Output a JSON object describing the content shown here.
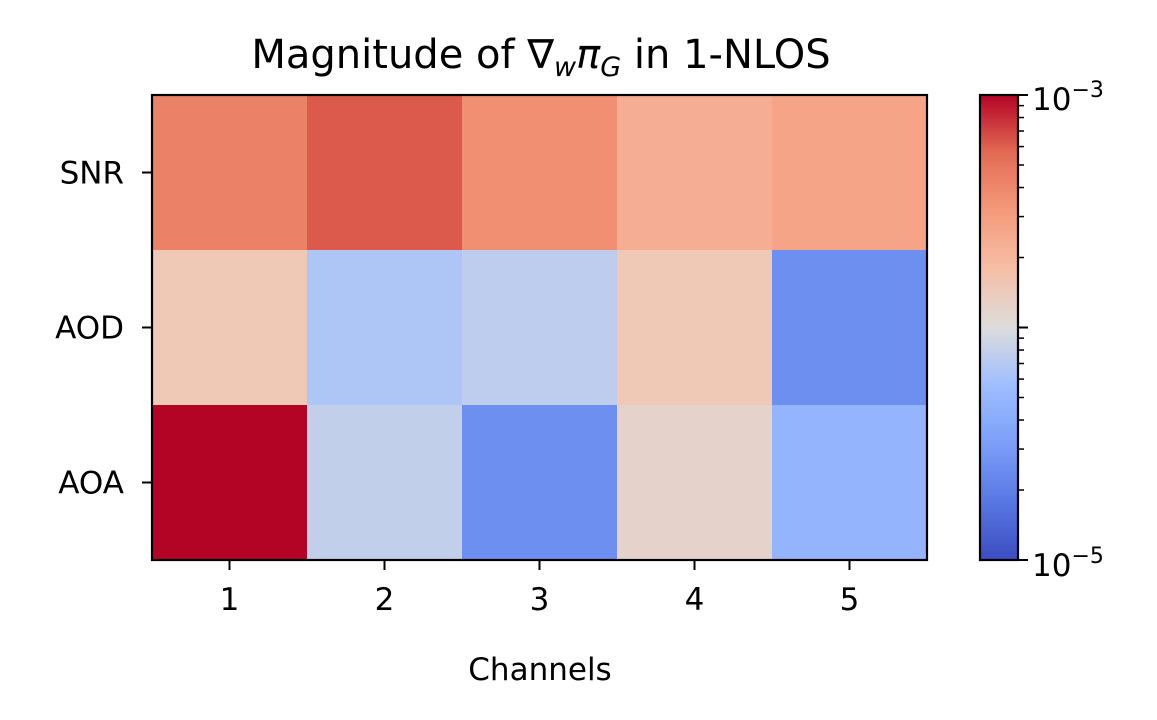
{
  "chart_data": {
    "type": "heatmap",
    "title": {
      "prefix": "Magnitude of ∇",
      "sub_w": "w",
      "pi": "π",
      "sub_g": "G",
      "suffix": " in 1-NLOS"
    },
    "xlabel": "Channels",
    "ylabel": "",
    "x_categories": [
      "1",
      "2",
      "3",
      "4",
      "5"
    ],
    "y_categories": [
      "SNR",
      "AOD",
      "AOA"
    ],
    "values": [
      [
        0.00043,
        0.00062,
        0.00036,
        0.00023,
        0.00027
      ],
      [
        0.00015,
        6.5e-05,
        7.5e-05,
        0.00015,
        2.5e-05
      ],
      [
        0.001,
        7.8e-05,
        2.5e-05,
        0.00012,
        4.8e-05
      ]
    ],
    "color_scale": {
      "type": "log",
      "min": 1e-05,
      "max": 0.001,
      "colormap": "coolwarm",
      "tick_min": {
        "base": "10",
        "exp": "−5"
      },
      "tick_max": {
        "base": "10",
        "exp": "−3"
      }
    },
    "grid": false,
    "legend": "colorbar-right"
  }
}
